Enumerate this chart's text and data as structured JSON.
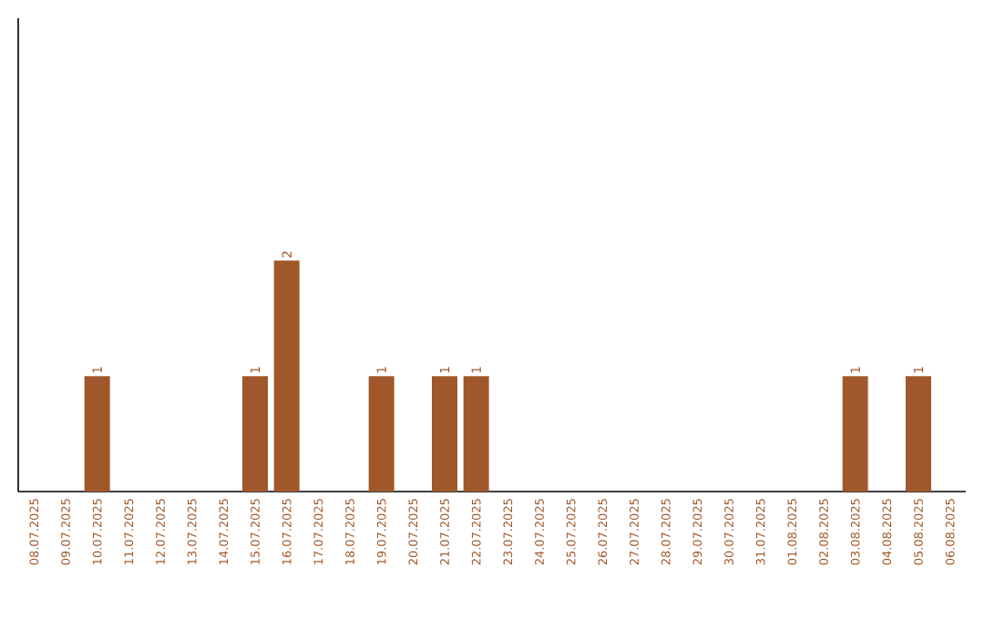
{
  "chart_data": {
    "type": "bar",
    "categories": [
      "08.07.2025",
      "09.07.2025",
      "10.07.2025",
      "11.07.2025",
      "12.07.2025",
      "13.07.2025",
      "14.07.2025",
      "15.07.2025",
      "16.07.2025",
      "17.07.2025",
      "18.07.2025",
      "19.07.2025",
      "20.07.2025",
      "21.07.2025",
      "22.07.2025",
      "23.07.2025",
      "24.07.2025",
      "25.07.2025",
      "26.07.2025",
      "27.07.2025",
      "28.07.2025",
      "29.07.2025",
      "30.07.2025",
      "31.07.2025",
      "01.08.2025",
      "02.08.2025",
      "03.08.2025",
      "04.08.2025",
      "05.08.2025",
      "06.08.2025"
    ],
    "values": [
      0,
      0,
      1,
      0,
      0,
      0,
      0,
      1,
      2,
      0,
      0,
      1,
      0,
      1,
      1,
      0,
      0,
      0,
      0,
      0,
      0,
      0,
      0,
      0,
      0,
      0,
      1,
      0,
      1,
      0
    ],
    "value_labels": [
      null,
      null,
      "1",
      null,
      null,
      null,
      null,
      "1",
      "2",
      null,
      null,
      "1",
      null,
      "1",
      "1",
      null,
      null,
      null,
      null,
      null,
      null,
      null,
      null,
      null,
      null,
      null,
      "1",
      null,
      "1",
      null
    ],
    "color": "#a0582a"
  }
}
